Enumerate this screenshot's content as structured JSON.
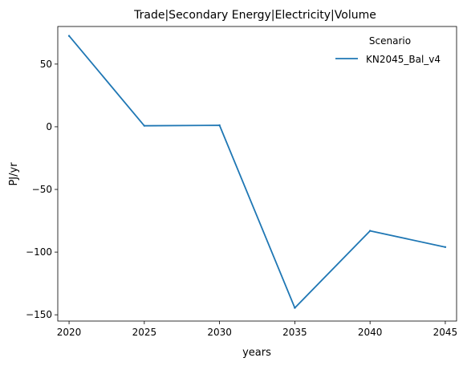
{
  "chart_data": {
    "type": "line",
    "title": "Trade|Secondary Energy|Electricity|Volume",
    "xlabel": "years",
    "ylabel": "PJ/yr",
    "x": [
      2020,
      2025,
      2030,
      2035,
      2040,
      2045
    ],
    "xticks": [
      "2020",
      "2025",
      "2030",
      "2035",
      "2040",
      "2045"
    ],
    "yticks": [
      "50",
      "0",
      "−50",
      "−100",
      "−150"
    ],
    "ytick_values": [
      50,
      0,
      -50,
      -100,
      -150
    ],
    "xlim": [
      2019.25,
      2045.75
    ],
    "ylim": [
      -155,
      80
    ],
    "series": [
      {
        "name": "KN2045_Bal_v4",
        "color": "#1f77b4",
        "values": [
          72.5,
          0.8,
          1.2,
          -144.5,
          -83,
          -96
        ]
      }
    ],
    "legend": {
      "title": "Scenario",
      "placement": "top-right"
    },
    "grid": false
  }
}
